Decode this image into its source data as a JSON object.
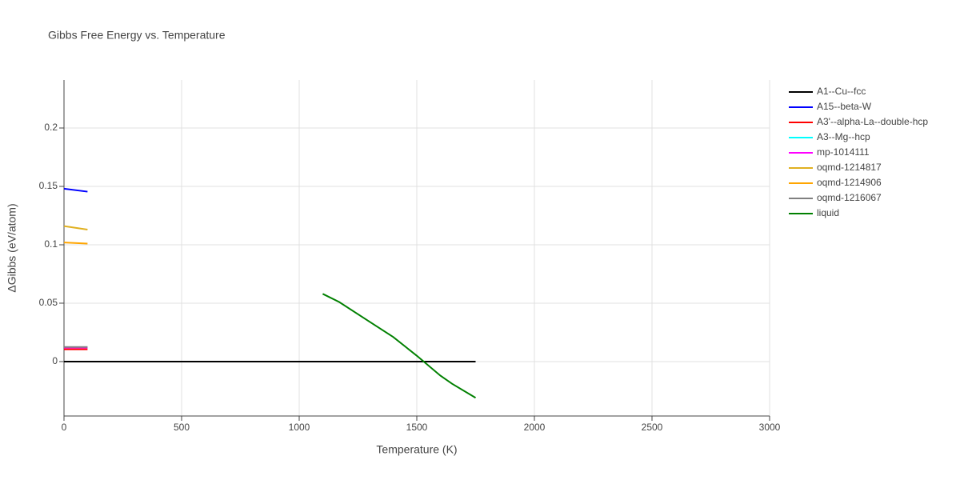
{
  "chart_data": {
    "type": "line",
    "title": "Gibbs Free Energy vs. Temperature",
    "x_label": "Temperature (K)",
    "y_label": "ΔGibbs (eV/atom)",
    "xlim": [
      0,
      3000
    ],
    "xticks": [
      0,
      500,
      1000,
      1500,
      2000,
      2500,
      3000
    ],
    "ylim": [
      -0.0466,
      0.2411
    ],
    "yticks": [
      0,
      0.05,
      0.1,
      0.15,
      0.2
    ],
    "grid": true,
    "legend": "right",
    "series": [
      {
        "name": "A1--Cu--fcc",
        "color": "#000000",
        "x": [
          0,
          1750
        ],
        "values": [
          0,
          0
        ]
      },
      {
        "name": "A15--beta-W",
        "color": "#0000ff",
        "x": [
          0,
          100
        ],
        "values": [
          0.148,
          0.1455
        ]
      },
      {
        "name": "A3'--alpha-La--double-hcp",
        "color": "#ff0000",
        "x": [
          0,
          100
        ],
        "values": [
          0.0105,
          0.0105
        ]
      },
      {
        "name": "A3--Mg--hcp",
        "color": "#00ffff",
        "x": [
          0,
          100
        ],
        "values": [
          0.012,
          0.012
        ]
      },
      {
        "name": "mp-1014111",
        "color": "#ff00ff",
        "x": [
          0,
          100
        ],
        "values": [
          0.012,
          0.012
        ]
      },
      {
        "name": "oqmd-1214817",
        "color": "#e0b020",
        "x": [
          0,
          100
        ],
        "values": [
          0.116,
          0.113
        ]
      },
      {
        "name": "oqmd-1214906",
        "color": "#ffa500",
        "x": [
          0,
          100
        ],
        "values": [
          0.102,
          0.101
        ]
      },
      {
        "name": "oqmd-1216067",
        "color": "#808080",
        "x": [
          0,
          100
        ],
        "values": [
          0.0125,
          0.0125
        ]
      },
      {
        "name": "liquid",
        "color": "#008000",
        "x": [
          1100,
          1170,
          1300,
          1400,
          1500,
          1600,
          1650,
          1750
        ],
        "values": [
          0.058,
          0.051,
          0.034,
          0.021,
          0.005,
          -0.012,
          -0.019,
          -0.031
        ]
      }
    ]
  }
}
